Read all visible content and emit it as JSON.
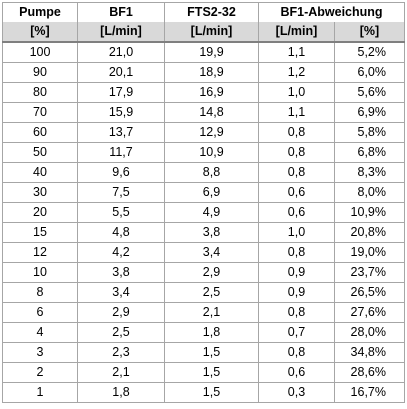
{
  "header": {
    "row1": [
      "Pumpe",
      "BF1",
      "FTS2-32",
      "BF1-Abweichung"
    ],
    "row2": [
      "[%]",
      "[L/min]",
      "[L/min]",
      "[L/min]",
      "[%]"
    ]
  },
  "rows": [
    [
      "100",
      "21,0",
      "19,9",
      "1,1",
      "5,2%"
    ],
    [
      "90",
      "20,1",
      "18,9",
      "1,2",
      "6,0%"
    ],
    [
      "80",
      "17,9",
      "16,9",
      "1,0",
      "5,6%"
    ],
    [
      "70",
      "15,9",
      "14,8",
      "1,1",
      "6,9%"
    ],
    [
      "60",
      "13,7",
      "12,9",
      "0,8",
      "5,8%"
    ],
    [
      "50",
      "11,7",
      "10,9",
      "0,8",
      "6,8%"
    ],
    [
      "40",
      "9,6",
      "8,8",
      "0,8",
      "8,3%"
    ],
    [
      "30",
      "7,5",
      "6,9",
      "0,6",
      "8,0%"
    ],
    [
      "20",
      "5,5",
      "4,9",
      "0,6",
      "10,9%"
    ],
    [
      "15",
      "4,8",
      "3,8",
      "1,0",
      "20,8%"
    ],
    [
      "12",
      "4,2",
      "3,4",
      "0,8",
      "19,0%"
    ],
    [
      "10",
      "3,8",
      "2,9",
      "0,9",
      "23,7%"
    ],
    [
      "8",
      "3,4",
      "2,5",
      "0,9",
      "26,5%"
    ],
    [
      "6",
      "2,9",
      "2,1",
      "0,8",
      "27,6%"
    ],
    [
      "4",
      "2,5",
      "1,8",
      "0,7",
      "28,0%"
    ],
    [
      "3",
      "2,3",
      "1,5",
      "0,8",
      "34,8%"
    ],
    [
      "2",
      "2,1",
      "1,5",
      "0,6",
      "28,6%"
    ],
    [
      "1",
      "1,8",
      "1,5",
      "0,3",
      "16,7%"
    ]
  ]
}
